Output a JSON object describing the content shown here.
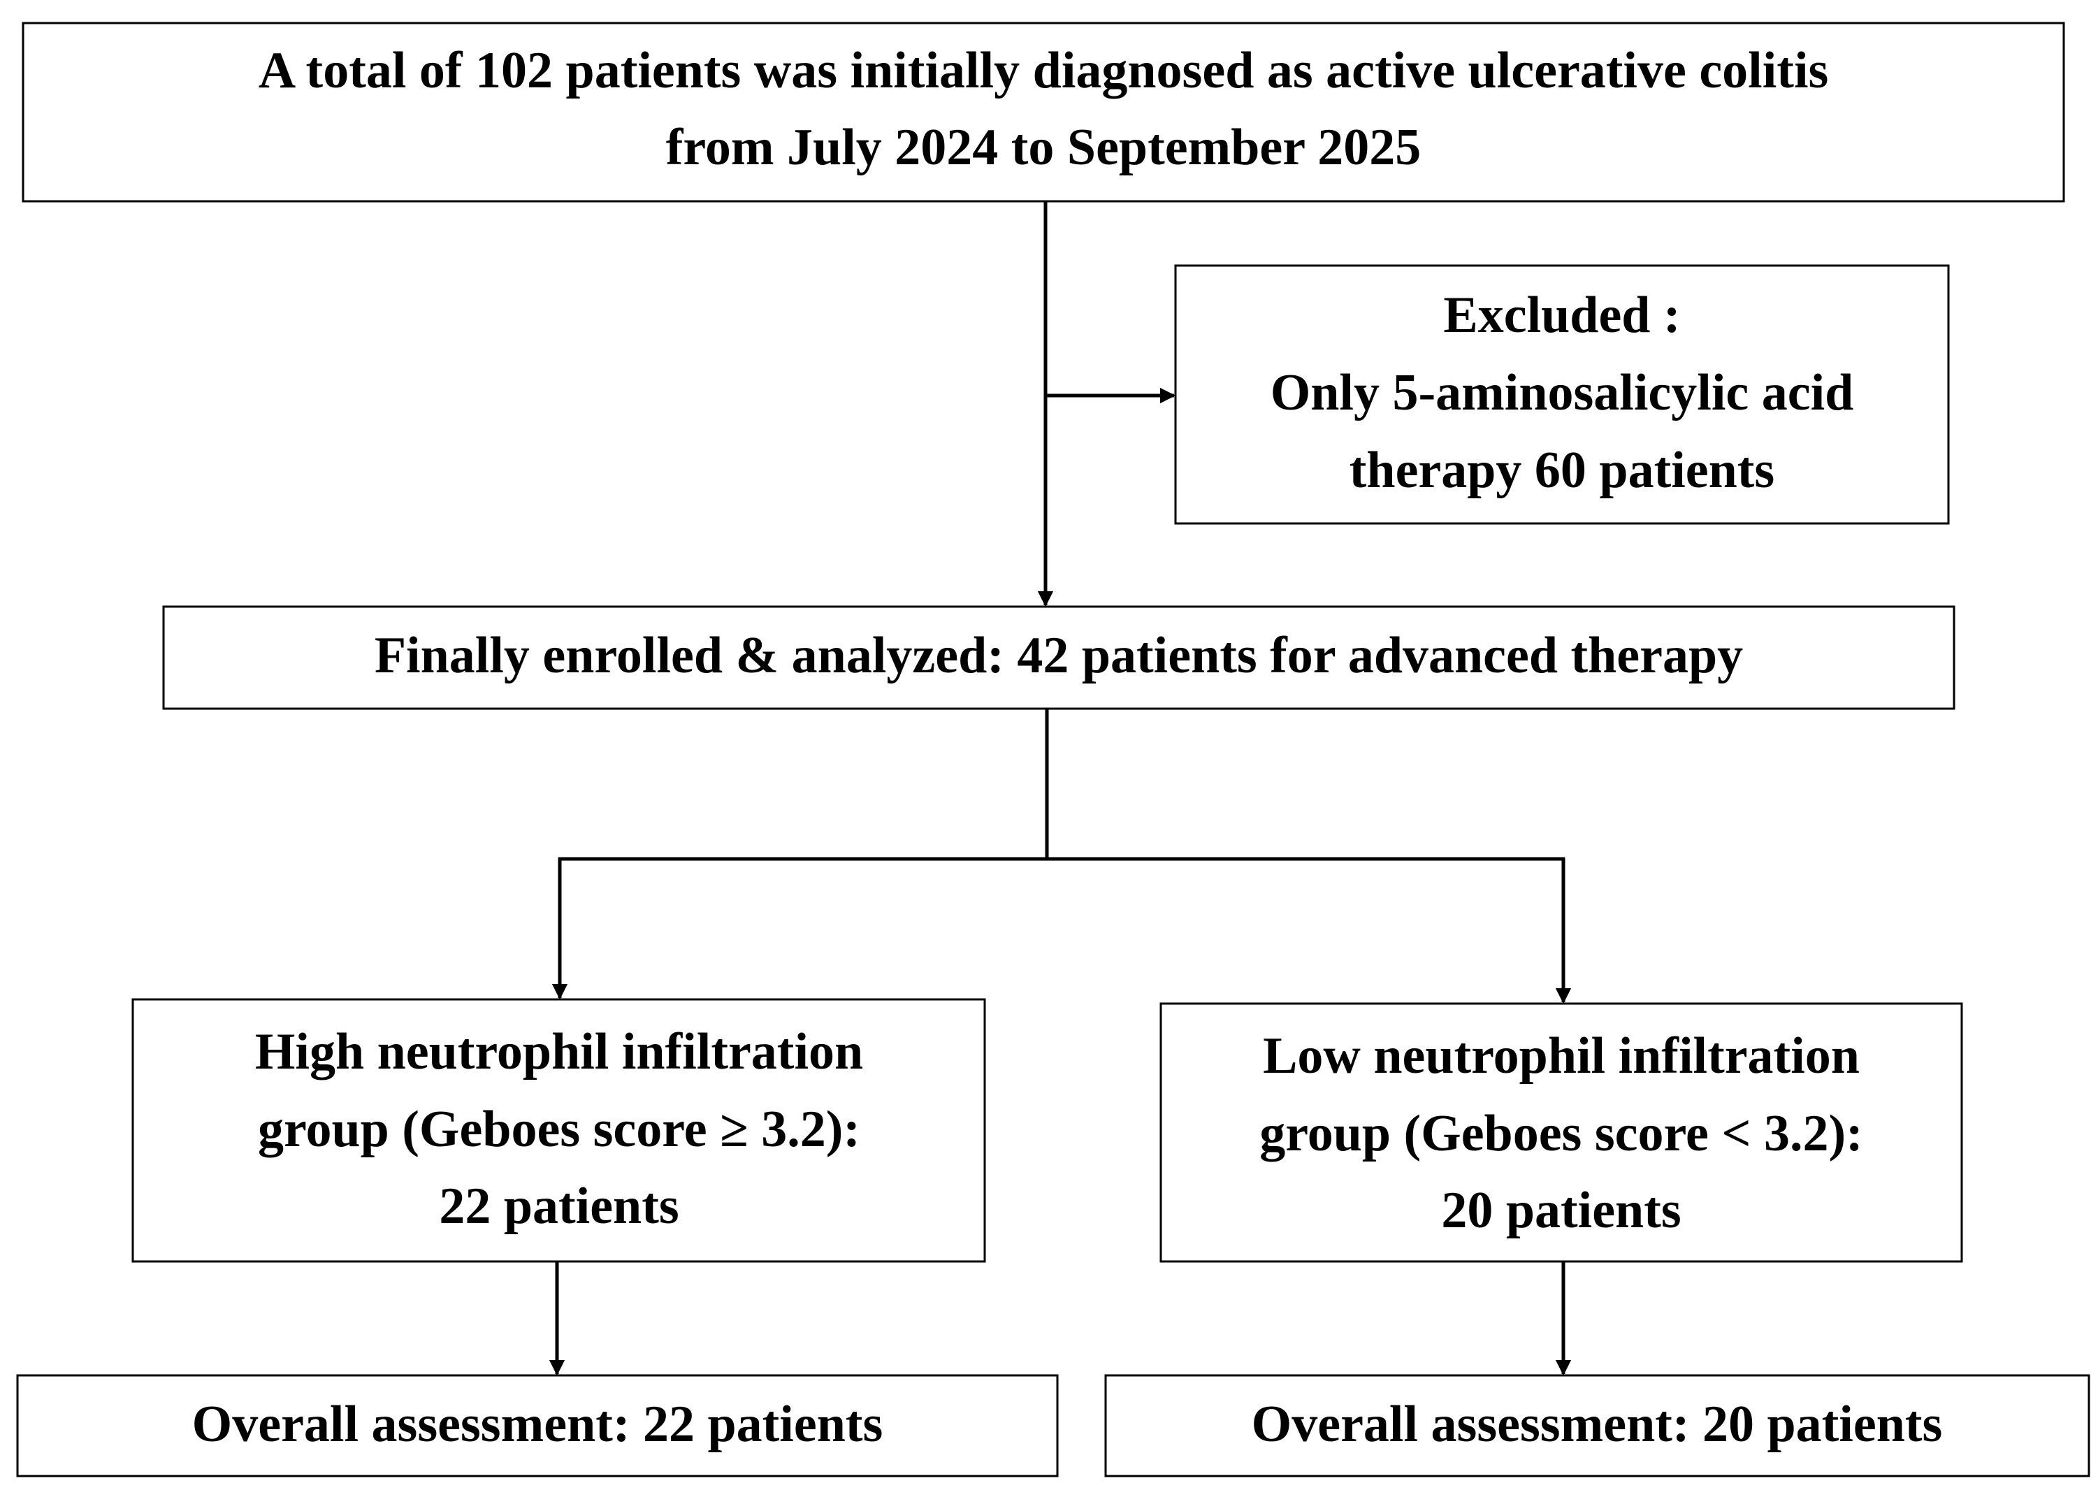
{
  "nodes": [
    {
      "lines": [
        "A total of 102 patients was initially diagnosed as active ulcerative colitis",
        "from July 2024 to September 2025"
      ]
    },
    {
      "lines": [
        "Excluded :",
        "Only 5-aminosalicylic acid",
        "therapy 60 patients"
      ]
    },
    {
      "lines": [
        "Finally enrolled & analyzed: 42 patients for advanced therapy"
      ]
    },
    {
      "lines": [
        "High neutrophil infiltration",
        "group (Geboes score ≥ 3.2):",
        "22 patients"
      ]
    },
    {
      "lines": [
        "Low neutrophil infiltration",
        "group (Geboes score < 3.2):",
        "20 patients"
      ]
    },
    {
      "lines": [
        "Overall assessment: 22 patients"
      ]
    },
    {
      "lines": [
        "Overall assessment: 20 patients"
      ]
    }
  ]
}
